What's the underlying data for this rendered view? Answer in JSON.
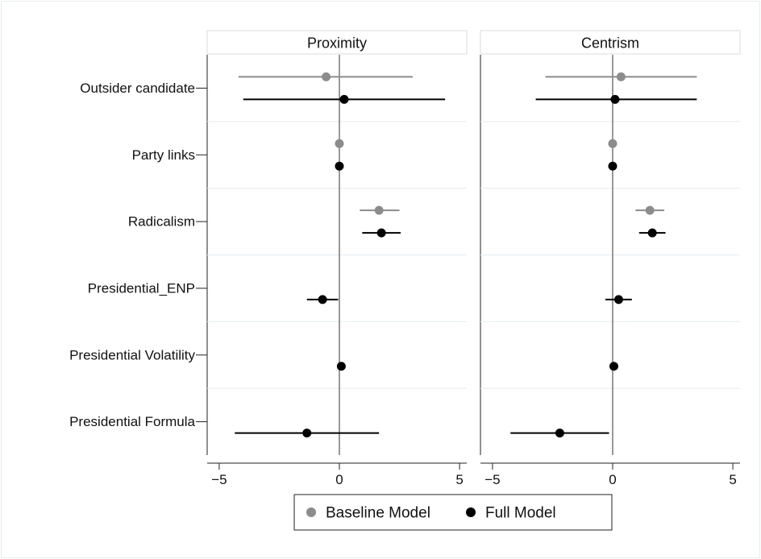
{
  "chart_data": {
    "type": "scatter",
    "subtype": "coefficient-plot",
    "categories": [
      "Outsider candidate",
      "Party links",
      "Radicalism",
      "Presidential_ENP",
      "Presidential Volatility",
      "Presidential Formula"
    ],
    "xlim": [
      -5.5,
      5.3
    ],
    "xticks": [
      -5,
      0,
      5
    ],
    "xtick_labels": [
      "−5",
      "0",
      "5"
    ],
    "zero_reference_line": true,
    "grid": "horizontal separators between rows",
    "legend_position": "bottom-center",
    "colors": {
      "baseline": "#8c8c8c",
      "full": "#000000"
    },
    "panels": [
      {
        "title": "Proximity",
        "series": [
          {
            "name": "Baseline Model",
            "points": [
              {
                "category": "Outsider candidate",
                "estimate": -0.55,
                "lower": -4.2,
                "upper": 3.05
              },
              {
                "category": "Party links",
                "estimate": 0.0,
                "lower": 0.0,
                "upper": 0.0
              },
              {
                "category": "Radicalism",
                "estimate": 1.65,
                "lower": 0.85,
                "upper": 2.5
              }
            ]
          },
          {
            "name": "Full Model",
            "points": [
              {
                "category": "Outsider candidate",
                "estimate": 0.2,
                "lower": -4.0,
                "upper": 4.4
              },
              {
                "category": "Party links",
                "estimate": 0.0,
                "lower": 0.0,
                "upper": 0.0
              },
              {
                "category": "Radicalism",
                "estimate": 1.75,
                "lower": 0.95,
                "upper": 2.55
              },
              {
                "category": "Presidential_ENP",
                "estimate": -0.7,
                "lower": -1.35,
                "upper": -0.05
              },
              {
                "category": "Presidential Volatility",
                "estimate": 0.08,
                "lower": 0.04,
                "upper": 0.12
              },
              {
                "category": "Presidential Formula",
                "estimate": -1.35,
                "lower": -4.35,
                "upper": 1.65
              }
            ]
          }
        ]
      },
      {
        "title": "Centrism",
        "series": [
          {
            "name": "Baseline Model",
            "points": [
              {
                "category": "Outsider candidate",
                "estimate": 0.35,
                "lower": -2.8,
                "upper": 3.5
              },
              {
                "category": "Party links",
                "estimate": 0.0,
                "lower": 0.0,
                "upper": 0.0
              },
              {
                "category": "Radicalism",
                "estimate": 1.55,
                "lower": 0.95,
                "upper": 2.15
              }
            ]
          },
          {
            "name": "Full Model",
            "points": [
              {
                "category": "Outsider candidate",
                "estimate": 0.1,
                "lower": -3.2,
                "upper": 3.5
              },
              {
                "category": "Party links",
                "estimate": 0.0,
                "lower": 0.0,
                "upper": 0.0
              },
              {
                "category": "Radicalism",
                "estimate": 1.65,
                "lower": 1.1,
                "upper": 2.2
              },
              {
                "category": "Presidential_ENP",
                "estimate": 0.25,
                "lower": -0.3,
                "upper": 0.8
              },
              {
                "category": "Presidential Volatility",
                "estimate": 0.05,
                "lower": 0.01,
                "upper": 0.09
              },
              {
                "category": "Presidential Formula",
                "estimate": -2.2,
                "lower": -4.25,
                "upper": -0.15
              }
            ]
          }
        ]
      }
    ],
    "legend": [
      {
        "label": "Baseline Model",
        "color": "#8c8c8c"
      },
      {
        "label": "Full Model",
        "color": "#000000"
      }
    ]
  }
}
